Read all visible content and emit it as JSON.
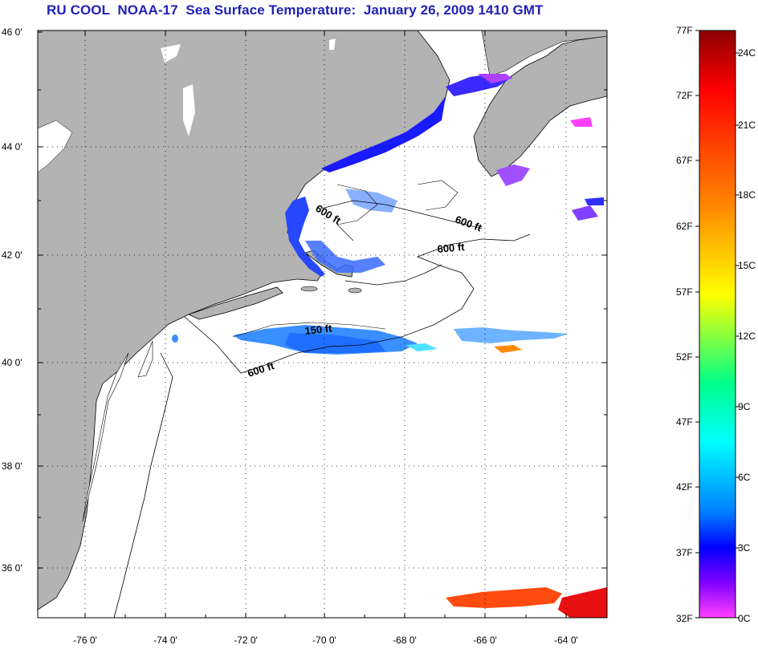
{
  "title": "RU COOL  NOAA-17  Sea Surface Temperature:  January 26, 2009 1410 GMT",
  "map": {
    "lat_ticks": [
      "46 0'",
      "44 0'",
      "42 0'",
      "40 0'",
      "38 0'",
      "36 0'"
    ],
    "lon_ticks": [
      "-76 0'",
      "-74 0'",
      "-72 0'",
      "-70 0'",
      "-68 0'",
      "-66 0'",
      "-64 0'"
    ],
    "contour_labels": [
      "600 ft",
      "600 ft",
      "600 ft",
      "150 ft",
      "600 ft"
    ],
    "colors": {
      "land": "#b3b3b3",
      "ocean": "#ffffff",
      "grid": "#000000"
    }
  },
  "colorbar": {
    "f_labels": [
      "77F",
      "72F",
      "67F",
      "62F",
      "57F",
      "52F",
      "47F",
      "42F",
      "37F",
      "32F"
    ],
    "c_labels": [
      "24C",
      "21C",
      "18C",
      "15C",
      "12C",
      "9C",
      "6C",
      "3C",
      "0C"
    ],
    "gradient": [
      "#8b0000",
      "#ff0000",
      "#ff8800",
      "#ffff00",
      "#00ff88",
      "#00ffff",
      "#0080ff",
      "#0000ff",
      "#8000ff",
      "#ff40ff"
    ]
  }
}
